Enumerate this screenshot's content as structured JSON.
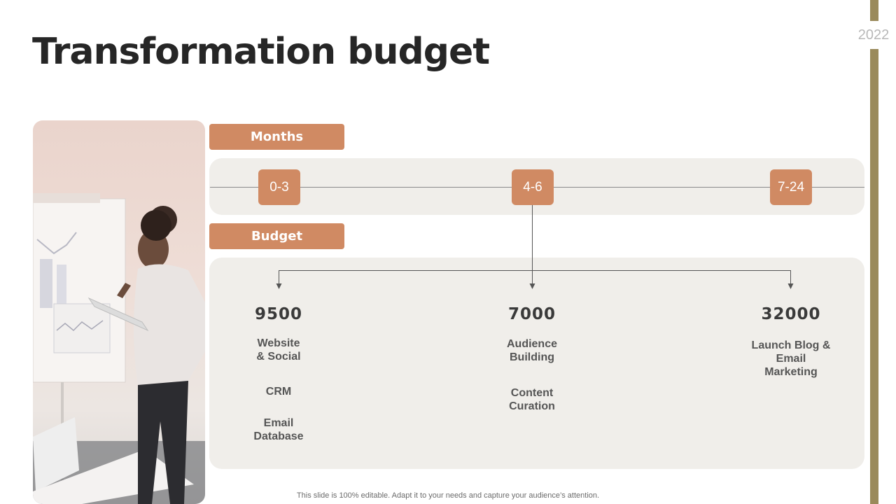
{
  "title": "Transformation budget",
  "year": "2022",
  "months_tab": "Months",
  "budget_tab": "Budget",
  "months": [
    "0-3",
    "4-6",
    "7-24"
  ],
  "budget": [
    {
      "amount": "9500",
      "items": [
        "Website\n& Social",
        "CRM",
        "Email\nDatabase"
      ]
    },
    {
      "amount": "7000",
      "items": [
        "Audience\nBuilding",
        "Content\nCuration"
      ]
    },
    {
      "amount": "32000",
      "items": [
        "Launch Blog &\nEmail\nMarketing"
      ]
    }
  ],
  "footnote": "This slide is 100% editable. Adapt it to your needs and capture your audience’s attention.",
  "colors": {
    "accent": "#d08a63",
    "panel": "#f0eeea",
    "side_bar": "#9a8a5b",
    "title": "#262626"
  },
  "image": "woman-at-whiteboard-photo"
}
